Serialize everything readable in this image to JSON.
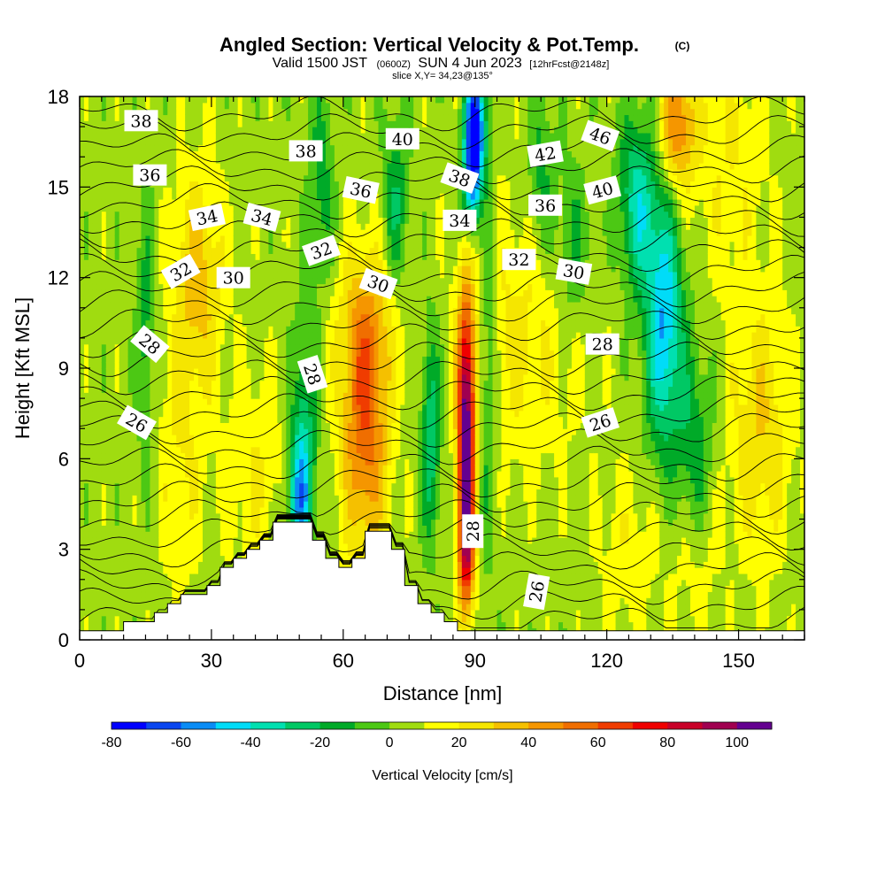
{
  "title": {
    "main": "Angled Section: Vertical Velocity & Pot.Temp.",
    "copyright": "(C)",
    "valid_prefix": "Valid 1500 JST",
    "valid_zulu": "(0600Z)",
    "valid_date": "SUN 4 Jun 2023",
    "forecast": "[12hrFcst@2148z]",
    "slice": "slice X,Y= 34,23@135°"
  },
  "chart_data": {
    "type": "heatmap",
    "title": "Angled Section: Vertical Velocity & Pot.Temp.",
    "xlabel": "Distance [nm]",
    "ylabel": "Height [Kft MSL]",
    "xlim": [
      0,
      165
    ],
    "ylim": [
      0,
      18
    ],
    "x_ticks": [
      0,
      30,
      60,
      90,
      120,
      150
    ],
    "y_ticks": [
      0,
      3,
      6,
      9,
      12,
      15,
      18
    ],
    "fill_variable": "Vertical Velocity [cm/s]",
    "colorbar": {
      "label": "Vertical Velocity [cm/s]",
      "ticks": [
        -80,
        -60,
        -40,
        -20,
        0,
        20,
        40,
        60,
        80,
        100
      ],
      "min": -80,
      "max": 110,
      "step": 10,
      "colors": [
        "#0000ff",
        "#0a46f0",
        "#0a8cf5",
        "#00dcf8",
        "#00e0b0",
        "#00c864",
        "#00aa28",
        "#4cc814",
        "#a0dc10",
        "#ffff00",
        "#f5e600",
        "#f5c000",
        "#f59600",
        "#f06e00",
        "#f03c00",
        "#f00000",
        "#c80028",
        "#a00050",
        "#640090"
      ]
    },
    "background_velocity": 5,
    "velocity_features": [
      {
        "x": 88,
        "y": 7.0,
        "sx": 1.4,
        "sy": 3.0,
        "amp": 100
      },
      {
        "x": 88,
        "y": 3.0,
        "sx": 1.3,
        "sy": 1.5,
        "amp": 55
      },
      {
        "x": 65,
        "y": 7.5,
        "sx": 3.8,
        "sy": 3.2,
        "amp": 55
      },
      {
        "x": 65,
        "y": 10.5,
        "sx": 6.0,
        "sy": 1.5,
        "amp": 12
      },
      {
        "x": 27,
        "y": 12.0,
        "sx": 4.0,
        "sy": 2.5,
        "amp": 30
      },
      {
        "x": 23,
        "y": 6.0,
        "sx": 4.0,
        "sy": 3.0,
        "amp": 15
      },
      {
        "x": 40,
        "y": 5.5,
        "sx": 5.0,
        "sy": 2.5,
        "amp": 15
      },
      {
        "x": 100,
        "y": 10.0,
        "sx": 10.0,
        "sy": 3.0,
        "amp": 18
      },
      {
        "x": 90,
        "y": 15.5,
        "sx": 3.0,
        "sy": 2.0,
        "amp": 15
      },
      {
        "x": 136,
        "y": 17.0,
        "sx": 3.0,
        "sy": 1.5,
        "amp": 45
      },
      {
        "x": 148,
        "y": 16.0,
        "sx": 6.0,
        "sy": 3.0,
        "amp": 15
      },
      {
        "x": 155,
        "y": 7.0,
        "sx": 5.0,
        "sy": 3.0,
        "amp": 25
      },
      {
        "x": 140,
        "y": 3.0,
        "sx": 4.0,
        "sy": 2.0,
        "amp": 15
      },
      {
        "x": 125,
        "y": 3.0,
        "sx": 5.0,
        "sy": 2.0,
        "amp": 12
      },
      {
        "x": 90,
        "y": 16.8,
        "sx": 1.8,
        "sy": 1.5,
        "amp": -95
      },
      {
        "x": 89,
        "y": 14.8,
        "sx": 1.5,
        "sy": 1.2,
        "amp": -45
      },
      {
        "x": 50,
        "y": 4.5,
        "sx": 2.0,
        "sy": 1.5,
        "amp": -45
      },
      {
        "x": 51,
        "y": 7.0,
        "sx": 2.0,
        "sy": 2.5,
        "amp": -30
      },
      {
        "x": 133,
        "y": 10.5,
        "sx": 3.0,
        "sy": 3.0,
        "amp": -55
      },
      {
        "x": 127,
        "y": 14.5,
        "sx": 3.0,
        "sy": 2.0,
        "amp": -40
      },
      {
        "x": 140,
        "y": 6.0,
        "sx": 3.0,
        "sy": 2.5,
        "amp": -25
      },
      {
        "x": 80,
        "y": 7.0,
        "sx": 1.5,
        "sy": 2.5,
        "amp": -35
      },
      {
        "x": 93,
        "y": 9.0,
        "sx": 1.5,
        "sy": 4.0,
        "amp": -25
      },
      {
        "x": 72,
        "y": 14.5,
        "sx": 2.0,
        "sy": 2.0,
        "amp": -25
      },
      {
        "x": 55,
        "y": 15.0,
        "sx": 2.0,
        "sy": 2.5,
        "amp": -20
      },
      {
        "x": 15,
        "y": 10.0,
        "sx": 1.5,
        "sy": 3.0,
        "amp": -20
      },
      {
        "x": 105,
        "y": 15.5,
        "sx": 2.0,
        "sy": 2.0,
        "amp": -20
      },
      {
        "x": 112,
        "y": 13.0,
        "sx": 3.0,
        "sy": 2.0,
        "amp": -20
      }
    ],
    "terrain": [
      {
        "x": 0,
        "h": 0.3
      },
      {
        "x": 10,
        "h": 0.3
      },
      {
        "x": 10,
        "h": 0.6
      },
      {
        "x": 17,
        "h": 0.6
      },
      {
        "x": 17,
        "h": 0.9
      },
      {
        "x": 20,
        "h": 0.9
      },
      {
        "x": 20,
        "h": 1.2
      },
      {
        "x": 23,
        "h": 1.2
      },
      {
        "x": 23,
        "h": 1.5
      },
      {
        "x": 29,
        "h": 1.5
      },
      {
        "x": 29,
        "h": 1.8
      },
      {
        "x": 32,
        "h": 1.8
      },
      {
        "x": 32,
        "h": 2.4
      },
      {
        "x": 35,
        "h": 2.4
      },
      {
        "x": 35,
        "h": 2.7
      },
      {
        "x": 38,
        "h": 2.7
      },
      {
        "x": 38,
        "h": 3.0
      },
      {
        "x": 41,
        "h": 3.0
      },
      {
        "x": 41,
        "h": 3.3
      },
      {
        "x": 44,
        "h": 3.3
      },
      {
        "x": 44,
        "h": 3.9
      },
      {
        "x": 53,
        "h": 3.9
      },
      {
        "x": 53,
        "h": 3.3
      },
      {
        "x": 56,
        "h": 3.3
      },
      {
        "x": 56,
        "h": 2.7
      },
      {
        "x": 59,
        "h": 2.7
      },
      {
        "x": 59,
        "h": 2.4
      },
      {
        "x": 62,
        "h": 2.4
      },
      {
        "x": 62,
        "h": 2.7
      },
      {
        "x": 65,
        "h": 2.7
      },
      {
        "x": 65,
        "h": 3.6
      },
      {
        "x": 71,
        "h": 3.6
      },
      {
        "x": 71,
        "h": 3.0
      },
      {
        "x": 74,
        "h": 3.0
      },
      {
        "x": 74,
        "h": 1.8
      },
      {
        "x": 77,
        "h": 1.8
      },
      {
        "x": 77,
        "h": 1.2
      },
      {
        "x": 80,
        "h": 1.2
      },
      {
        "x": 80,
        "h": 0.9
      },
      {
        "x": 83,
        "h": 0.9
      },
      {
        "x": 83,
        "h": 0.6
      },
      {
        "x": 86,
        "h": 0.6
      },
      {
        "x": 86,
        "h": 0.3
      },
      {
        "x": 165,
        "h": 0.3
      }
    ],
    "theta_contour_labels": [
      {
        "value": "38",
        "x": 14,
        "y": 17.2,
        "angle": 0
      },
      {
        "value": "36",
        "x": 16,
        "y": 15.4,
        "angle": 0
      },
      {
        "value": "38",
        "x": 51.5,
        "y": 16.2,
        "angle": 0
      },
      {
        "value": "40",
        "x": 73.5,
        "y": 16.6,
        "angle": 0
      },
      {
        "value": "38",
        "x": 86.5,
        "y": 15.3,
        "angle": 20
      },
      {
        "value": "42",
        "x": 106,
        "y": 16.1,
        "angle": -10
      },
      {
        "value": "46",
        "x": 118.5,
        "y": 16.7,
        "angle": 20
      },
      {
        "value": "36",
        "x": 64,
        "y": 14.9,
        "angle": 12
      },
      {
        "value": "40",
        "x": 119,
        "y": 14.9,
        "angle": -15
      },
      {
        "value": "34",
        "x": 29,
        "y": 14.0,
        "angle": -12
      },
      {
        "value": "34",
        "x": 41.5,
        "y": 14.0,
        "angle": 15
      },
      {
        "value": "34",
        "x": 86.5,
        "y": 13.9,
        "angle": 0
      },
      {
        "value": "36",
        "x": 106,
        "y": 14.4,
        "angle": 0
      },
      {
        "value": "32",
        "x": 55,
        "y": 12.9,
        "angle": -20
      },
      {
        "value": "32",
        "x": 100,
        "y": 12.6,
        "angle": 0
      },
      {
        "value": "32",
        "x": 23,
        "y": 12.2,
        "angle": -30
      },
      {
        "value": "30",
        "x": 35,
        "y": 12.0,
        "angle": 0
      },
      {
        "value": "30",
        "x": 68,
        "y": 11.8,
        "angle": 20
      },
      {
        "value": "30",
        "x": 112.5,
        "y": 12.2,
        "angle": 10
      },
      {
        "value": "28",
        "x": 16,
        "y": 9.8,
        "angle": 40
      },
      {
        "value": "28",
        "x": 53,
        "y": 8.8,
        "angle": 72
      },
      {
        "value": "28",
        "x": 119,
        "y": 9.8,
        "angle": 0
      },
      {
        "value": "26",
        "x": 13,
        "y": 7.2,
        "angle": 30
      },
      {
        "value": "26",
        "x": 118.5,
        "y": 7.2,
        "angle": -18
      },
      {
        "value": "28",
        "x": 89.5,
        "y": 3.6,
        "angle": -90
      },
      {
        "value": "26",
        "x": 104,
        "y": 1.6,
        "angle": -80
      }
    ]
  }
}
